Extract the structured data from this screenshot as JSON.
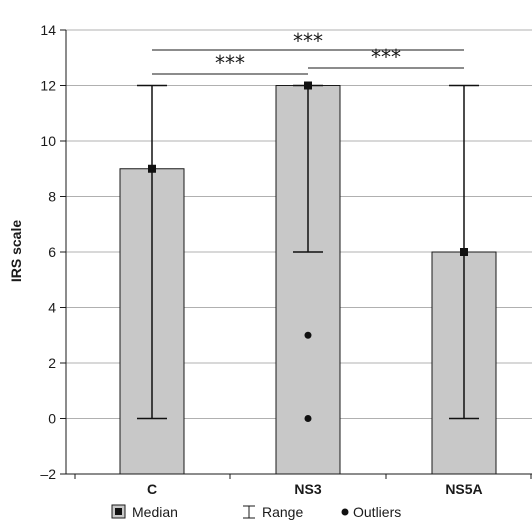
{
  "chart_data": {
    "type": "bar",
    "title": "",
    "xlabel": "",
    "ylabel": "IRS scale",
    "ylim": [
      -2,
      14
    ],
    "yticks": [
      "–2",
      "0",
      "2",
      "4",
      "6",
      "8",
      "10",
      "12",
      "14"
    ],
    "categories": [
      "C",
      "NS3",
      "NS5A"
    ],
    "series": [
      {
        "name": "Median",
        "values": [
          9,
          12,
          6
        ]
      }
    ],
    "range": [
      {
        "min": 0,
        "max": 12
      },
      {
        "min": 6,
        "max": 12
      },
      {
        "min": 0,
        "max": 12
      }
    ],
    "outliers": [
      [],
      [
        3,
        0
      ],
      []
    ],
    "significance": [
      {
        "from": "C",
        "to": "NS3",
        "label": "***"
      },
      {
        "from": "C",
        "to": "NS5A",
        "label": "***"
      },
      {
        "from": "NS3",
        "to": "NS5A",
        "label": "***"
      }
    ],
    "legend": {
      "position": "bottom",
      "items": [
        {
          "label": "Median",
          "icon": "median-square-icon"
        },
        {
          "label": "Range",
          "icon": "range-whisker-icon"
        },
        {
          "label": "Outliers",
          "icon": "outlier-dot-icon"
        }
      ]
    },
    "colors": {
      "bar_fill": "#c8c8c8",
      "bar_stroke": "#1a1a1a",
      "axis": "#1a1a1a",
      "grid": "#b0b0b0",
      "marker": "#111111"
    },
    "grid": true
  }
}
